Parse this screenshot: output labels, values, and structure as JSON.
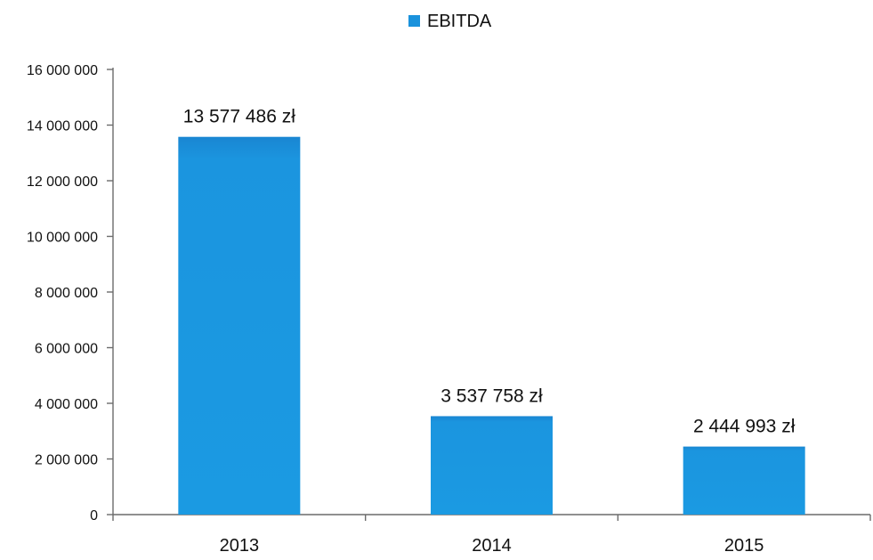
{
  "chart_data": {
    "type": "bar",
    "categories": [
      "2013",
      "2014",
      "2015"
    ],
    "series": [
      {
        "name": "EBITDA",
        "values": [
          13577486,
          3537758,
          2444993
        ],
        "data_labels": [
          "13 577 486 zł",
          "3 537 758 zł",
          "2 444 993  zł"
        ],
        "color": "#1a92dc"
      }
    ],
    "ylim": [
      0,
      16000000
    ],
    "y_ticks": [
      0,
      2000000,
      4000000,
      6000000,
      8000000,
      10000000,
      12000000,
      14000000,
      16000000
    ],
    "y_tick_labels": [
      "0",
      "2 000 000",
      "4 000 000",
      "6 000 000",
      "8 000 000",
      "10 000 000",
      "12 000 000",
      "14 000 000",
      "16 000 000"
    ],
    "legend_position": "top-center",
    "grid": false,
    "title": "",
    "xlabel": "",
    "ylabel": ""
  }
}
